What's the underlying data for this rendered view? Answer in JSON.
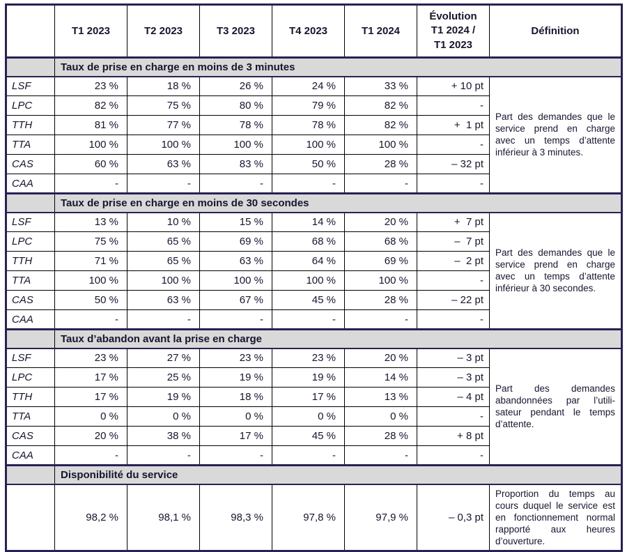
{
  "header": {
    "corner": "",
    "quarters": [
      "T1 2023",
      "T2 2023",
      "T3 2023",
      "T4 2023",
      "T1 2024"
    ],
    "evolution": "Évolution\nT1 2024 /\nT1 2023",
    "definition": "Définition"
  },
  "sections": [
    {
      "title": "Taux de prise en charge en moins de 3 minutes",
      "definition": "Part des demandes que le service prend en charge avec un temps d’attente inférieur à 3 minutes.",
      "rows": [
        {
          "label": "LSF",
          "values": [
            "23 %",
            "18 %",
            "26 %",
            "24 %",
            "33 %"
          ],
          "evolution": "+ 10 pt"
        },
        {
          "label": "LPC",
          "values": [
            "82 %",
            "75 %",
            "80 %",
            "79 %",
            "82 %"
          ],
          "evolution": "-"
        },
        {
          "label": "TTH",
          "values": [
            "81 %",
            "77 %",
            "78 %",
            "78 %",
            "82 %"
          ],
          "evolution": "+  1 pt"
        },
        {
          "label": "TTA",
          "values": [
            "100 %",
            "100 %",
            "100 %",
            "100 %",
            "100 %"
          ],
          "evolution": "-"
        },
        {
          "label": "CAS",
          "values": [
            "60 %",
            "63 %",
            "83 %",
            "50 %",
            "28 %"
          ],
          "evolution": "– 32 pt"
        },
        {
          "label": "CAA",
          "values": [
            "-",
            "-",
            "-",
            "-",
            "-"
          ],
          "evolution": "-"
        }
      ]
    },
    {
      "title": "Taux de prise en charge en moins de 30 secondes",
      "definition": "Part des demandes que le service prend en charge avec un temps d’attente inférieur à 30 secondes.",
      "rows": [
        {
          "label": "LSF",
          "values": [
            "13 %",
            "10 %",
            "15 %",
            "14 %",
            "20 %"
          ],
          "evolution": "+  7 pt"
        },
        {
          "label": "LPC",
          "values": [
            "75 %",
            "65 %",
            "69 %",
            "68 %",
            "68 %"
          ],
          "evolution": "–  7 pt"
        },
        {
          "label": "TTH",
          "values": [
            "71 %",
            "65 %",
            "63 %",
            "64 %",
            "69 %"
          ],
          "evolution": "–  2 pt"
        },
        {
          "label": "TTA",
          "values": [
            "100 %",
            "100 %",
            "100 %",
            "100 %",
            "100 %"
          ],
          "evolution": "-"
        },
        {
          "label": "CAS",
          "values": [
            "50 %",
            "63 %",
            "67 %",
            "45 %",
            "28 %"
          ],
          "evolution": "– 22 pt"
        },
        {
          "label": "CAA",
          "values": [
            "-",
            "-",
            "-",
            "-",
            "-"
          ],
          "evolution": "-"
        }
      ]
    },
    {
      "title": "Taux d’abandon avant la prise en charge",
      "definition": "Part des demandes abandonnées par l’utili­sateur pendant le temps d’attente.",
      "rows": [
        {
          "label": "LSF",
          "values": [
            "23 %",
            "27 %",
            "23 %",
            "23 %",
            "20 %"
          ],
          "evolution": "– 3 pt"
        },
        {
          "label": "LPC",
          "values": [
            "17 %",
            "25 %",
            "19 %",
            "19 %",
            "14 %"
          ],
          "evolution": "– 3 pt"
        },
        {
          "label": "TTH",
          "values": [
            "17 %",
            "19 %",
            "18 %",
            "17 %",
            "13 %"
          ],
          "evolution": "– 4 pt"
        },
        {
          "label": "TTA",
          "values": [
            "0 %",
            "0 %",
            "0 %",
            "0 %",
            "0 %"
          ],
          "evolution": "-"
        },
        {
          "label": "CAS",
          "values": [
            "20 %",
            "38 %",
            "17 %",
            "45 %",
            "28 %"
          ],
          "evolution": "+ 8 pt"
        },
        {
          "label": "CAA",
          "values": [
            "-",
            "-",
            "-",
            "-",
            "-"
          ],
          "evolution": "-"
        }
      ]
    }
  ],
  "availability": {
    "title": "Disponibilité du service",
    "label": "",
    "values": [
      "98,2 %",
      "98,1 %",
      "98,3 %",
      "97,8 %",
      "97,9 %"
    ],
    "evolution": "– 0,3 pt",
    "definition": "Proportion du temps au cours duquel le service est en fonctionnement normal rapporté aux heures d’ouverture."
  },
  "colors": {
    "border_navy": "#262254",
    "grid_black": "#000000",
    "section_gray": "#d9d9d9",
    "text": "#17152e"
  }
}
